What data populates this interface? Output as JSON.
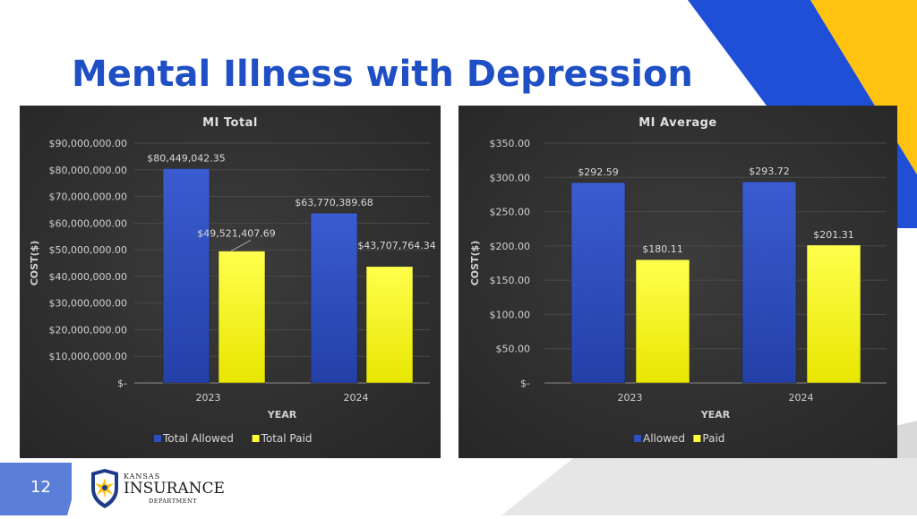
{
  "slide": {
    "title": "Mental Illness with Depression",
    "page_number": "12"
  },
  "logo": {
    "line1": "Kansas",
    "line2": "Insurance",
    "line3": "Department"
  },
  "colors": {
    "title": "#1f4fc4",
    "allowed_bar": "#2e4fbf",
    "paid_bar": "#ffff33",
    "chart_bg": "#2f2f2f",
    "deco_blue": "#1e4fd6",
    "deco_yellow": "#ffc20e",
    "deco_gray": "#d9d9d9",
    "page_tab": "#5b7fd8"
  },
  "chart_data": [
    {
      "type": "bar",
      "title": "MI Total",
      "xlabel": "YEAR",
      "ylabel": "COST($)",
      "categories": [
        "2023",
        "2024"
      ],
      "ylim": [
        0,
        90000000
      ],
      "yticks": [
        "$-",
        "$10,000,000.00",
        "$20,000,000.00",
        "$30,000,000.00",
        "$40,000,000.00",
        "$50,000,000.00",
        "$60,000,000.00",
        "$70,000,000.00",
        "$80,000,000.00",
        "$90,000,000.00"
      ],
      "series": [
        {
          "name": "Total Allowed",
          "values": [
            80449042.35,
            63770389.68
          ],
          "labels": [
            "$80,449,042.35",
            "$63,770,389.68"
          ],
          "color": "#2e4fbf"
        },
        {
          "name": "Total Paid",
          "values": [
            49521407.69,
            43707764.34
          ],
          "labels": [
            "$49,521,407.69",
            "$43,707,764.34"
          ],
          "color": "#ffff33"
        }
      ],
      "legend": "bottom",
      "grid": true
    },
    {
      "type": "bar",
      "title": "MI Average",
      "xlabel": "YEAR",
      "ylabel": "COST($)",
      "categories": [
        "2023",
        "2024"
      ],
      "ylim": [
        0,
        350
      ],
      "yticks": [
        "$-",
        "$50.00",
        "$100.00",
        "$150.00",
        "$200.00",
        "$250.00",
        "$300.00",
        "$350.00"
      ],
      "series": [
        {
          "name": "Allowed",
          "values": [
            292.59,
            293.72
          ],
          "labels": [
            "$292.59",
            "$293.72"
          ],
          "color": "#2e4fbf"
        },
        {
          "name": "Paid",
          "values": [
            180.11,
            201.31
          ],
          "labels": [
            "$180.11",
            "$201.31"
          ],
          "color": "#ffff33"
        }
      ],
      "legend": "bottom",
      "grid": true
    }
  ]
}
